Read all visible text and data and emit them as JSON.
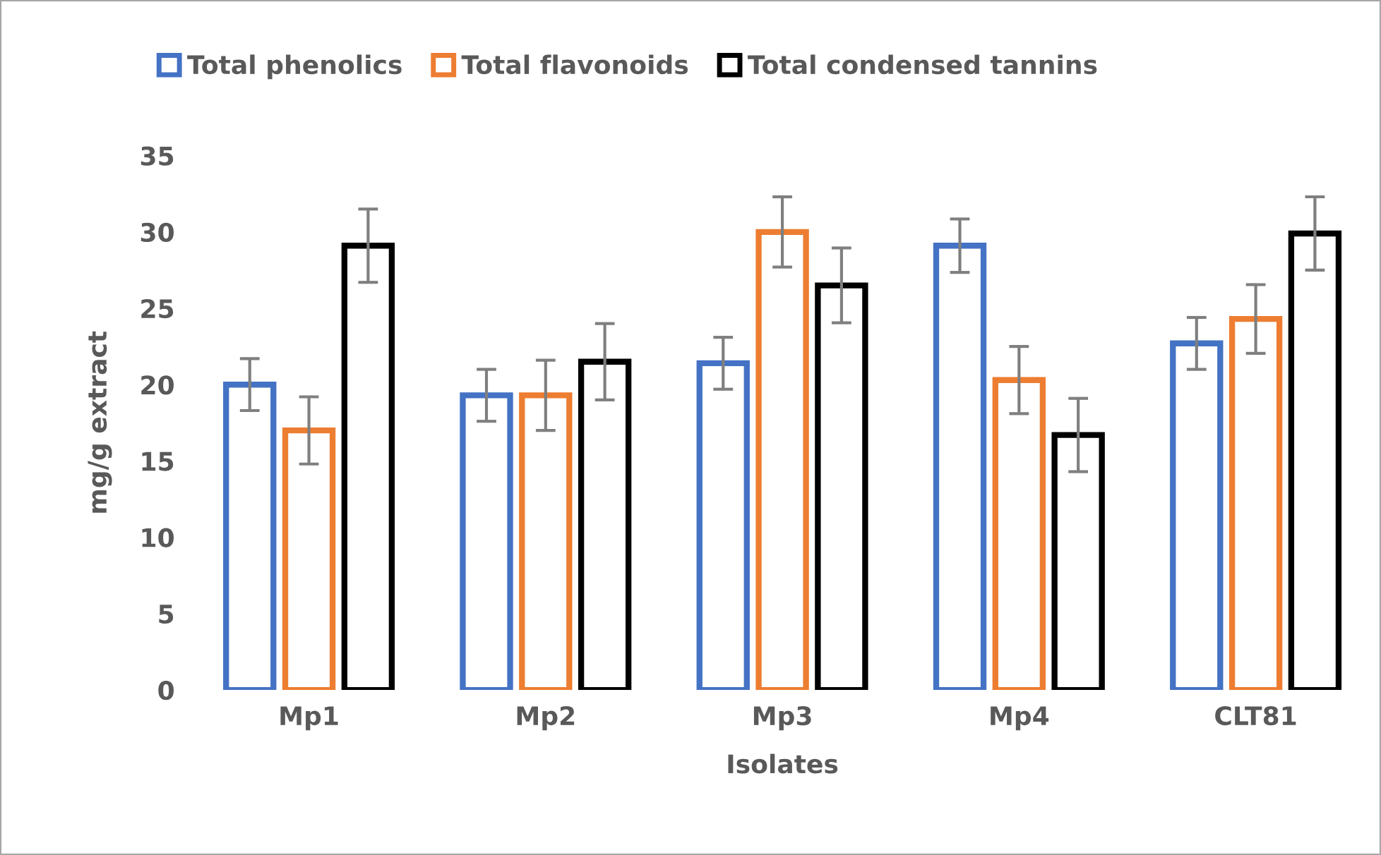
{
  "chart_data": {
    "type": "bar",
    "xlabel": "Isolates",
    "ylabel": "mg/g extract",
    "categories": [
      "Mp1",
      "Mp2",
      "Mp3",
      "Mp4",
      "CLT81"
    ],
    "series": [
      {
        "name": "Total phenolics",
        "color": "#4472c4",
        "values": [
          20.0,
          19.3,
          21.4,
          29.1,
          22.7
        ],
        "errors": [
          1.7,
          1.7,
          1.7,
          1.75,
          1.7
        ]
      },
      {
        "name": "Total flavonoids",
        "color": "#ed7d31",
        "values": [
          17.0,
          19.3,
          30.0,
          20.3,
          24.3
        ],
        "errors": [
          2.2,
          2.3,
          2.3,
          2.2,
          2.25
        ]
      },
      {
        "name": "Total condensed tannins",
        "color": "#000000",
        "values": [
          29.1,
          21.5,
          26.5,
          16.7,
          29.9
        ],
        "errors": [
          2.4,
          2.5,
          2.45,
          2.4,
          2.4
        ]
      }
    ],
    "ylim": [
      0,
      35
    ],
    "yticks": [
      0,
      5,
      10,
      15,
      20,
      25,
      30,
      35
    ],
    "grid": false,
    "legend": "top"
  }
}
